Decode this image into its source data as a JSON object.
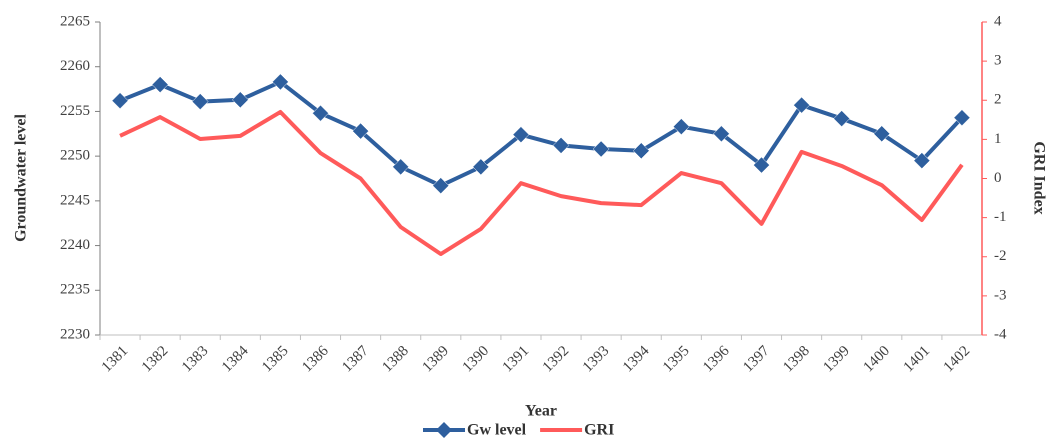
{
  "chart_data": {
    "type": "line",
    "x_label": "Year",
    "y_label": "Groundwater level",
    "y2_label": "GRI Index",
    "categories": [
      "1381",
      "1382",
      "1383",
      "1384",
      "1385",
      "1386",
      "1387",
      "1388",
      "1389",
      "1390",
      "1391",
      "1392",
      "1393",
      "1394",
      "1395",
      "1396",
      "1397",
      "1398",
      "1399",
      "1400",
      "1401",
      "1402"
    ],
    "series": [
      {
        "name": "Gw level",
        "color": "#2e5f9e",
        "marker": "diamond",
        "axis": "y",
        "values": [
          2256.2,
          2258.0,
          2256.1,
          2256.3,
          2258.3,
          2254.8,
          2252.8,
          2248.8,
          2246.7,
          2248.8,
          2252.4,
          2251.2,
          2250.8,
          2250.6,
          2253.3,
          2252.5,
          2249.0,
          2255.7,
          2254.2,
          2252.5,
          2249.5,
          2254.3
        ]
      },
      {
        "name": "GRI",
        "color": "#ff5a5a",
        "axis": "y2",
        "values": [
          1.09,
          1.57,
          1.01,
          1.09,
          1.7,
          0.65,
          0.0,
          -1.24,
          -1.93,
          -1.29,
          -0.12,
          -0.45,
          -0.63,
          -0.68,
          0.14,
          -0.12,
          -1.16,
          0.68,
          0.32,
          -0.17,
          -1.06,
          0.35
        ]
      }
    ],
    "ylim": [
      2230,
      2265
    ],
    "yticks": [
      2230,
      2235,
      2240,
      2245,
      2250,
      2255,
      2260,
      2265
    ],
    "y2lim": [
      -4,
      4
    ],
    "y2ticks": [
      -4,
      -3,
      -2,
      -1,
      0,
      1,
      2,
      3,
      4
    ],
    "y2_axis_color": "#ff5a5a",
    "grid": false,
    "legend": "bottom"
  }
}
